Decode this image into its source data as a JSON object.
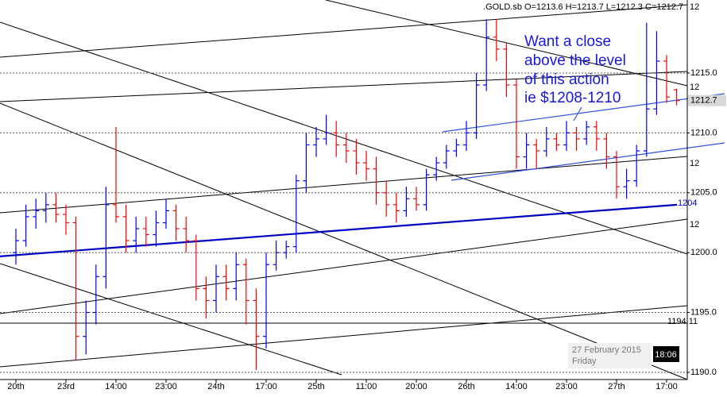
{
  "chart_data": {
    "type": "ohlc",
    "title": ".GOLD.sb O=1213.6 H=1213.7 L=1212.3 C=1212.7",
    "annotation": [
      "Want a close",
      "above the level",
      "of this action",
      "ie $1208-1210"
    ],
    "categories": [
      "20th",
      null,
      null,
      null,
      null,
      "23rd",
      null,
      null,
      null,
      null,
      "14:00",
      null,
      null,
      null,
      null,
      "23:00",
      null,
      null,
      null,
      null,
      "24th",
      null,
      null,
      null,
      null,
      "17:00",
      null,
      null,
      null,
      null,
      "25th",
      null,
      null,
      null,
      null,
      "11:00",
      null,
      null,
      null,
      null,
      "20:00",
      null,
      null,
      null,
      null,
      "26th",
      null,
      null,
      null,
      null,
      "14:00",
      null,
      null,
      null,
      null,
      "23:00",
      null,
      null,
      null,
      null,
      "27th",
      null,
      null,
      null,
      null,
      "17:00",
      null
    ],
    "open": [
      1200,
      1201,
      1203,
      1203.5,
      1204,
      1203.2,
      1202.5,
      1193,
      1195,
      1198,
      1204,
      1203,
      1201,
      1202,
      1201.5,
      1202.5,
      1203.5,
      1202,
      1201,
      1197,
      1196,
      1198,
      1197,
      1199,
      1196,
      1193,
      1199,
      1200,
      1200.5,
      1206,
      1209,
      1209.5,
      1210,
      1209,
      1208.5,
      1207.5,
      1207,
      1205,
      1204,
      1203.5,
      1204.5,
      1204,
      1206.5,
      1207.5,
      1208.5,
      1209,
      1210,
      1214,
      1218,
      1217,
      1214,
      1208,
      1209,
      1208.5,
      1209.5,
      1209,
      1210,
      1209.5,
      1210.5,
      1209.5,
      1208,
      1205.5,
      1206,
      1208.5,
      1212,
      1216,
      1213.6
    ],
    "high": [
      1202,
      1204,
      1204.5,
      1205,
      1205,
      1204,
      1203,
      1196,
      1199,
      1205.5,
      1210.5,
      1204,
      1203,
      1203,
      1203.5,
      1204.5,
      1204,
      1203,
      1201.5,
      1198,
      1199,
      1199,
      1200,
      1199.5,
      1197,
      1200,
      1201,
      1201,
      1206.5,
      1210,
      1210.5,
      1211.5,
      1211,
      1210,
      1209.5,
      1208.5,
      1208,
      1206,
      1205,
      1205.5,
      1205.5,
      1207,
      1208,
      1209,
      1209.5,
      1211,
      1215,
      1219.5,
      1219.5,
      1217.5,
      1214.5,
      1210,
      1209.5,
      1210.5,
      1210,
      1211,
      1210.5,
      1211,
      1211,
      1210,
      1208.5,
      1207,
      1209,
      1219.2,
      1218.5,
      1216.5,
      1213.7
    ],
    "low": [
      1199,
      1200.5,
      1202,
      1202.5,
      1202.5,
      1201.5,
      1191,
      1191.5,
      1194,
      1197,
      1202.5,
      1200,
      1200,
      1200.5,
      1200.5,
      1202,
      1201,
      1200,
      1196,
      1194.5,
      1195,
      1196,
      1196,
      1194,
      1190.2,
      1192,
      1198.5,
      1199.5,
      1200,
      1205,
      1208,
      1209,
      1208,
      1207.5,
      1206.5,
      1206,
      1204,
      1203,
      1202.5,
      1203,
      1203.5,
      1203.5,
      1206,
      1207,
      1208,
      1208.5,
      1209.5,
      1213.5,
      1216,
      1213,
      1207,
      1207,
      1207,
      1208,
      1208.5,
      1208.5,
      1208.5,
      1209,
      1208.5,
      1207,
      1204.5,
      1204.5,
      1205.5,
      1208,
      1211.5,
      1212.5,
      1212.3
    ],
    "close": [
      1201,
      1203,
      1203.5,
      1204,
      1203.2,
      1202.5,
      1193,
      1195,
      1198,
      1204,
      1203,
      1201,
      1202,
      1201.5,
      1202.5,
      1203.5,
      1202,
      1201,
      1197,
      1196,
      1198,
      1197,
      1199,
      1196,
      1193,
      1199,
      1200,
      1200.5,
      1206,
      1209,
      1209.5,
      1210,
      1209,
      1208.5,
      1207.5,
      1207,
      1205,
      1204,
      1203.5,
      1204.5,
      1204,
      1206.5,
      1207.5,
      1208.5,
      1209,
      1210,
      1214,
      1218,
      1217,
      1214,
      1208,
      1209,
      1208.5,
      1209.5,
      1209,
      1210,
      1209.5,
      1210.5,
      1209.5,
      1208,
      1205.5,
      1206,
      1208.5,
      1212,
      1216,
      1213,
      1212.7
    ],
    "up_color": "#0000ff",
    "down_color": "#ff0000",
    "ylim": [
      1189.4,
      1221.1
    ],
    "yticks": [
      {
        "value": 1190,
        "label": "1190.0"
      },
      {
        "value": 1195,
        "label": "1195.0"
      },
      {
        "value": 1200,
        "label": "1200.0"
      },
      {
        "value": 1205,
        "label": "1205.0"
      },
      {
        "value": 1210,
        "label": "1210.0"
      },
      {
        "value": 1215,
        "label": "1215.0"
      }
    ],
    "grid": true,
    "current_price": 1212.7,
    "levels": [
      {
        "value": 1194.11,
        "color": "#000000"
      },
      {
        "value": 1204,
        "color": "#0000c0"
      }
    ],
    "line_labels": [
      "12",
      "12",
      "12",
      "12"
    ],
    "date_box": {
      "date": "27 February 2015",
      "day": "Friday",
      "time": "18:06"
    }
  }
}
